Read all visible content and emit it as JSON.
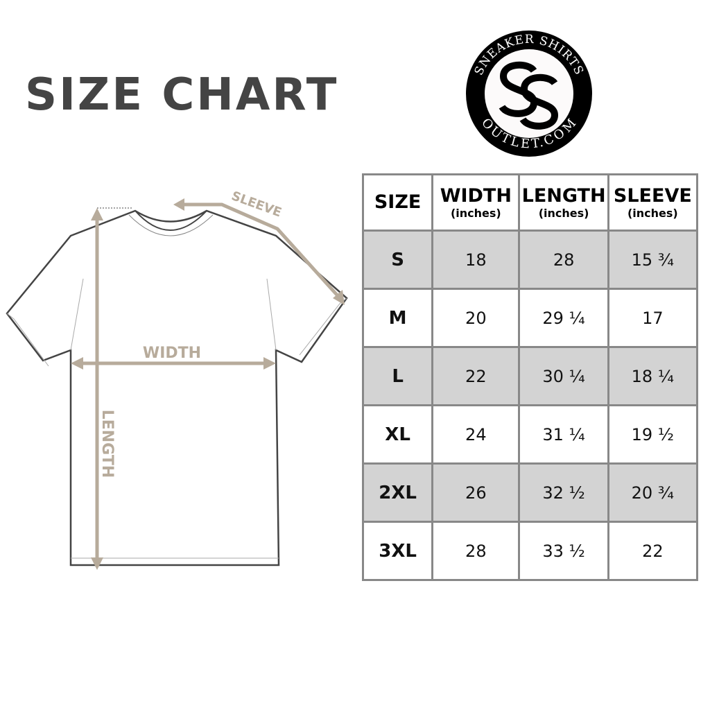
{
  "title": "SIZE CHART",
  "logo": {
    "text_top": "SNEAKER SHIRTS",
    "text_bottom": "OUTLET.COM",
    "monogram": "SS"
  },
  "diagram": {
    "sleeve_label": "SLEEVE",
    "width_label": "WIDTH",
    "length_label": "LENGTH",
    "accent_color": "#b7ab9b"
  },
  "table": {
    "headers": [
      {
        "label": "SIZE",
        "unit": ""
      },
      {
        "label": "WIDTH",
        "unit": "(inches)"
      },
      {
        "label": "LENGTH",
        "unit": "(inches)"
      },
      {
        "label": "SLEEVE",
        "unit": "(inches)"
      }
    ],
    "rows": [
      [
        "S",
        "18",
        "28",
        "15 ¾"
      ],
      [
        "M",
        "20",
        "29 ¼",
        "17"
      ],
      [
        "L",
        "22",
        "30 ¼",
        "18 ¼"
      ],
      [
        "XL",
        "24",
        "31 ¼",
        "19 ½"
      ],
      [
        "2XL",
        "26",
        "32 ½",
        "20 ¾"
      ],
      [
        "3XL",
        "28",
        "33 ½",
        "22"
      ]
    ],
    "shade_color": "#d3d3d3"
  }
}
